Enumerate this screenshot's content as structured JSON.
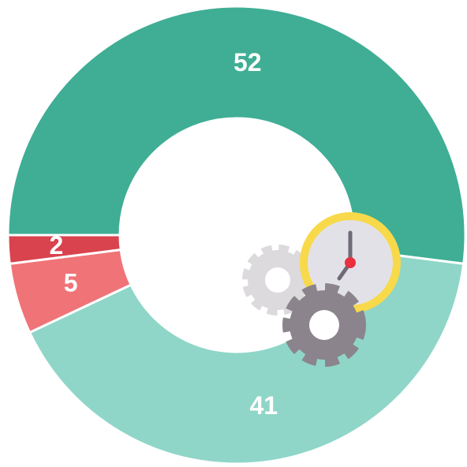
{
  "chart_data": {
    "type": "donut",
    "categories": [
      null,
      null,
      null,
      null
    ],
    "values": [
      52,
      41,
      5,
      2
    ],
    "colors": [
      "#3fae94",
      "#8fd6c8",
      "#f07377",
      "#d9434e"
    ]
  }
}
